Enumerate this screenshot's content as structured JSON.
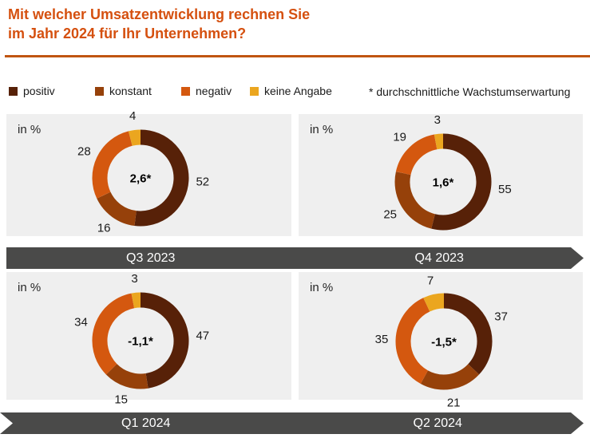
{
  "title": {
    "line1": "Mit welcher Umsatzentwicklung rechnen Sie",
    "line2": "im Jahr 2024 für Ihr Unternehmen?"
  },
  "legend": {
    "items": [
      {
        "label": "positiv",
        "color": "#572108"
      },
      {
        "label": "konstant",
        "color": "#96410A"
      },
      {
        "label": "negativ",
        "color": "#D4580F"
      },
      {
        "label": "keine Angabe",
        "color": "#EBA61F"
      }
    ],
    "note": "* durchschnittliche Wachstumserwartung"
  },
  "colors": {
    "title": "#D5500F",
    "rule": "#C05511",
    "banner": "#4A4A49",
    "panel_background": "#EFEFEF"
  },
  "chart_data": [
    {
      "type": "pie",
      "variant": "donut",
      "quarter": "Q3 2023",
      "unit_label": "in %",
      "center_value": "2,6*",
      "segments": [
        {
          "label": "positiv",
          "value": 52
        },
        {
          "label": "konstant",
          "value": 16
        },
        {
          "label": "negativ",
          "value": 28
        },
        {
          "label": "keine Angabe",
          "value": 4
        }
      ]
    },
    {
      "type": "pie",
      "variant": "donut",
      "quarter": "Q4 2023",
      "unit_label": "in %",
      "center_value": "1,6*",
      "segments": [
        {
          "label": "positiv",
          "value": 55
        },
        {
          "label": "konstant",
          "value": 25
        },
        {
          "label": "negativ",
          "value": 19
        },
        {
          "label": "keine Angabe",
          "value": 3
        }
      ]
    },
    {
      "type": "pie",
      "variant": "donut",
      "quarter": "Q1 2024",
      "unit_label": "in %",
      "center_value": "-1,1*",
      "segments": [
        {
          "label": "positiv",
          "value": 47
        },
        {
          "label": "konstant",
          "value": 15
        },
        {
          "label": "negativ",
          "value": 34
        },
        {
          "label": "keine Angabe",
          "value": 3
        }
      ]
    },
    {
      "type": "pie",
      "variant": "donut",
      "quarter": "Q2 2024",
      "unit_label": "in %",
      "center_value": "-1,5*",
      "segments": [
        {
          "label": "positiv",
          "value": 37
        },
        {
          "label": "konstant",
          "value": 21
        },
        {
          "label": "negativ",
          "value": 35
        },
        {
          "label": "keine Angabe",
          "value": 7
        }
      ]
    }
  ]
}
